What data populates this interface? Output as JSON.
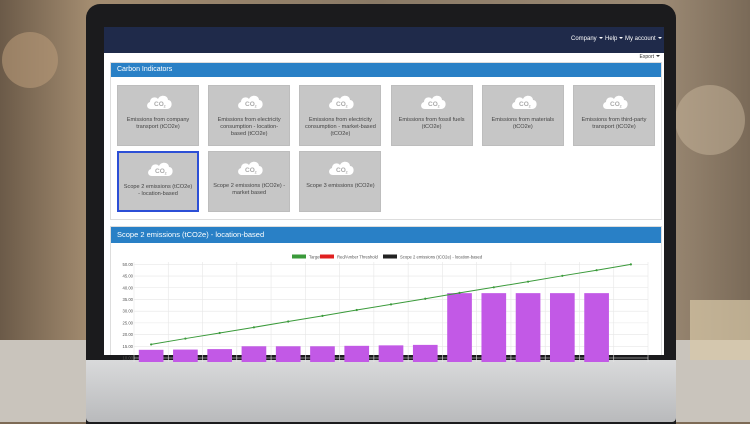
{
  "navbar": {
    "company_label": "Company",
    "help_label": "Help",
    "account_label": "My account"
  },
  "export_label": "Export",
  "carbon_panel": {
    "title": "Carbon Indicators",
    "tiles": [
      {
        "icon": "co2-cloud-icon",
        "label": "Emissions from company transport (tCO2e)",
        "selected": false
      },
      {
        "icon": "co2-cloud-icon",
        "label": "Emissions from electricity consumption - location-based (tCO2e)",
        "selected": false
      },
      {
        "icon": "co2-cloud-icon",
        "label": "Emissions from electricity consumption - market-based (tCO2e)",
        "selected": false
      },
      {
        "icon": "co2-cloud-icon",
        "label": "Emissions from fossil fuels (tCO2e)",
        "selected": false
      },
      {
        "icon": "co2-cloud-icon",
        "label": "Emissions from materials (tCO2e)",
        "selected": false
      },
      {
        "icon": "co2-cloud-icon",
        "label": "Emissions from third-party transport (tCO2e)",
        "selected": false
      },
      {
        "icon": "co2-cloud-icon",
        "label": "Scope 2 emissions (tCO2e) - location-based",
        "selected": true
      },
      {
        "icon": "co2-cloud-icon",
        "label": "Scope 2 emissions (tCO2e) - market based",
        "selected": false
      },
      {
        "icon": "co2-cloud-icon",
        "label": "Scope 3 emissions (tCO2e)",
        "selected": false
      }
    ]
  },
  "chart_panel": {
    "title": "Scope 2 emissions (tCO2e) - location-based"
  },
  "colors": {
    "navbar": "#1f2a4a",
    "panel_header": "#2980c6",
    "target_line": "#3a9a3a",
    "bar": "#c259e6",
    "threshold": "#e02020",
    "series_legend": "#222222"
  },
  "chart_data": {
    "type": "bar",
    "legend": [
      "Target",
      "Red/Amber Threshold",
      "Scope 2 emissions (tCO2e) - location-based"
    ],
    "yticks": [
      "10.00",
      "15.00",
      "20.00",
      "25.00",
      "30.00",
      "35.00",
      "40.00",
      "45.00",
      "50.00"
    ],
    "ylim": [
      10,
      51
    ],
    "grid": true,
    "legend_position": "top",
    "series": [
      {
        "name": "Scope 2 emissions (tCO2e) - location-based",
        "type": "bar",
        "values": [
          13.5,
          13.6,
          13.8,
          15,
          15,
          15,
          15.2,
          15.4,
          15.6,
          37.7,
          37.7,
          37.7,
          37.7,
          37.7
        ]
      },
      {
        "name": "Target",
        "type": "line",
        "values": [
          15.8,
          18.3,
          20.7,
          23.1,
          25.6,
          28,
          30.5,
          32.9,
          35.3,
          37.8,
          40.2,
          42.6,
          45.1,
          47.5,
          50
        ]
      }
    ]
  }
}
